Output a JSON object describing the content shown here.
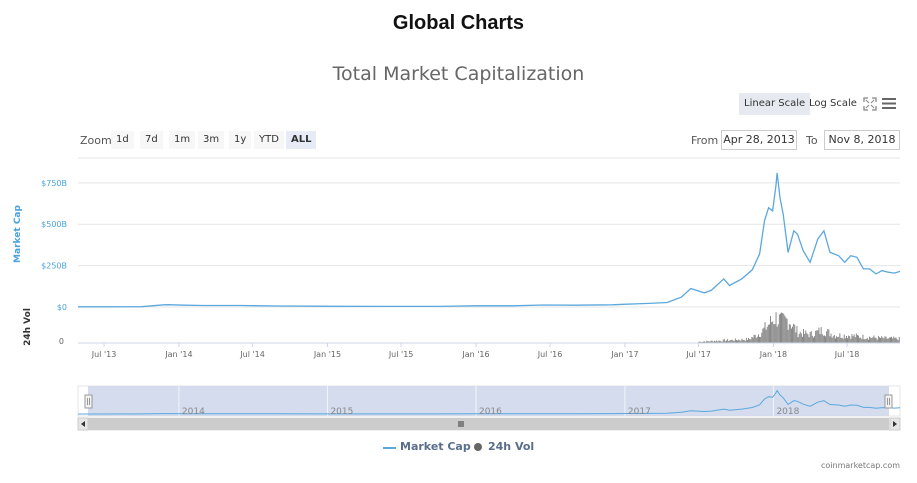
{
  "page": {
    "heading": "Global Charts"
  },
  "toolbar": {
    "linear_scale": "Linear Scale",
    "log_scale": "Log Scale",
    "fullscreen_icon": "expand-icon",
    "menu_icon": "hamburger-menu-icon"
  },
  "zoom": {
    "label": "Zoom",
    "buttons": [
      "1d",
      "7d",
      "1m",
      "3m",
      "1y",
      "YTD",
      "ALL"
    ],
    "selected": "ALL"
  },
  "range": {
    "from_label": "From",
    "from_value": "Apr 28, 2013",
    "to_label": "To",
    "to_value": "Nov 8, 2018"
  },
  "colors": {
    "market_cap": "#5ba8dd",
    "volume": "#666666",
    "axis_label": "#4aa3df",
    "navigator_mask": "#ccd6eb"
  },
  "chart_data": {
    "type": "line",
    "title": "Total Market Capitalization",
    "ylabel": "Market Cap",
    "volume_axis_label": "24h Vol",
    "x_range": [
      "2013-04-28",
      "2018-11-08"
    ],
    "ylim": [
      0,
      900
    ],
    "y_unit": "billion USD",
    "y_ticks": [
      "$0",
      "$250B",
      "$500B",
      "$750B"
    ],
    "volume_tick": "0",
    "x_ticks": [
      "Jul '13",
      "Jan '14",
      "Jul '14",
      "Jan '15",
      "Jul '15",
      "Jan '16",
      "Jul '16",
      "Jan '17",
      "Jul '17",
      "Jan '18",
      "Jul '18"
    ],
    "grid": true,
    "legend": "bottom-center",
    "series": [
      {
        "name": "Market Cap",
        "x": [
          "2013-04-28",
          "2013-07-01",
          "2013-10-01",
          "2013-11-25",
          "2013-12-05",
          "2014-01-15",
          "2014-03-01",
          "2014-06-01",
          "2014-09-01",
          "2014-12-01",
          "2015-01-15",
          "2015-06-01",
          "2015-10-01",
          "2016-01-01",
          "2016-04-01",
          "2016-06-15",
          "2016-09-01",
          "2016-12-01",
          "2017-01-05",
          "2017-03-01",
          "2017-04-15",
          "2017-05-20",
          "2017-06-12",
          "2017-07-15",
          "2017-08-01",
          "2017-09-01",
          "2017-09-15",
          "2017-10-15",
          "2017-11-10",
          "2017-11-28",
          "2017-12-10",
          "2017-12-20",
          "2017-12-30",
          "2018-01-07",
          "2018-01-10",
          "2018-01-17",
          "2018-01-25",
          "2018-02-06",
          "2018-02-20",
          "2018-03-01",
          "2018-03-15",
          "2018-04-01",
          "2018-04-20",
          "2018-05-05",
          "2018-05-20",
          "2018-06-10",
          "2018-06-25",
          "2018-07-10",
          "2018-07-25",
          "2018-08-10",
          "2018-08-25",
          "2018-09-10",
          "2018-09-25",
          "2018-10-10",
          "2018-10-25",
          "2018-11-08"
        ],
        "values": [
          1.5,
          1.2,
          1.8,
          13,
          14,
          11,
          9,
          9,
          6,
          5,
          4.5,
          3.5,
          3.5,
          7,
          7,
          12,
          11,
          13,
          17,
          22,
          27,
          60,
          112,
          85,
          100,
          170,
          130,
          170,
          225,
          320,
          520,
          600,
          580,
          730,
          810,
          660,
          560,
          330,
          460,
          440,
          340,
          270,
          410,
          460,
          330,
          310,
          270,
          310,
          300,
          230,
          230,
          200,
          220,
          210,
          205,
          215
        ]
      },
      {
        "name": "24h Vol",
        "x": [
          "2017-07-01",
          "2017-09-01",
          "2017-11-01",
          "2017-12-01",
          "2017-12-20",
          "2018-01-05",
          "2018-01-20",
          "2018-02-06",
          "2018-03-01",
          "2018-04-01",
          "2018-05-01",
          "2018-06-01",
          "2018-07-01",
          "2018-08-01",
          "2018-09-01",
          "2018-10-01",
          "2018-11-08"
        ],
        "values": [
          3,
          6,
          9,
          25,
          45,
          60,
          50,
          55,
          25,
          20,
          30,
          18,
          18,
          15,
          13,
          11,
          10
        ]
      }
    ],
    "navigator": {
      "x_labels": [
        "2014",
        "2015",
        "2016",
        "2017",
        "2018"
      ]
    }
  },
  "credits": "coinmarketcap.com"
}
